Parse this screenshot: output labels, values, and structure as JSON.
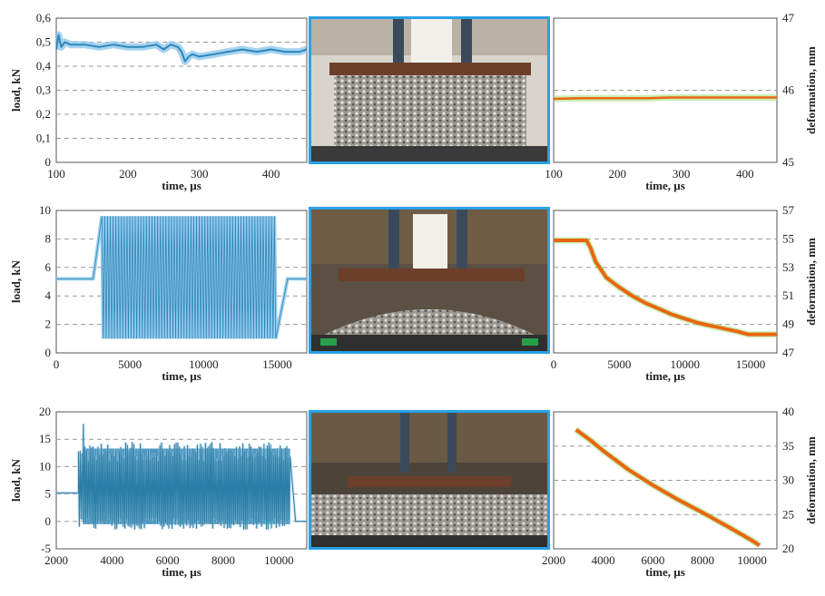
{
  "figure": {
    "photo_border_color": "#2aa0e6",
    "load_color": "#2e86b8",
    "load_band_color": "#8fc8ec",
    "deformation_color": "#e8660f",
    "deformation_glow_color": "#9fe07a",
    "grid_style": "dashed",
    "grid_color": "#999999"
  },
  "photos": [
    {
      "name": "ballast-box-photo-row1",
      "description_icon": "photo-ballast-box"
    },
    {
      "name": "ballast-box-photo-row2",
      "description_icon": "photo-ballast-box-loaded"
    },
    {
      "name": "ballast-box-photo-row3",
      "description_icon": "photo-ballast-box-settled"
    }
  ],
  "chart_data": [
    {
      "type": "line",
      "row": 1,
      "panel": "left",
      "quantity": "load",
      "xlabel": "time, µs",
      "ylabel": "load, kN",
      "xlim": [
        100,
        450
      ],
      "ylim": [
        0,
        0.6
      ],
      "xticks": [
        "100",
        "200",
        "300",
        "400"
      ],
      "xtick_values": [
        100,
        200,
        300,
        400
      ],
      "yticks": [
        "0",
        "0,1",
        "0,2",
        "0,3",
        "0,4",
        "0,5",
        "0,6"
      ],
      "ytick_values": [
        0,
        0.1,
        0.2,
        0.3,
        0.4,
        0.5,
        0.6
      ],
      "grid": true,
      "x": [
        100,
        103,
        107,
        112,
        120,
        140,
        160,
        180,
        200,
        220,
        240,
        250,
        260,
        270,
        275,
        280,
        285,
        290,
        300,
        320,
        340,
        360,
        380,
        400,
        420,
        440,
        450
      ],
      "y": [
        0.47,
        0.53,
        0.48,
        0.5,
        0.49,
        0.49,
        0.48,
        0.49,
        0.48,
        0.48,
        0.49,
        0.47,
        0.49,
        0.48,
        0.46,
        0.42,
        0.44,
        0.45,
        0.44,
        0.45,
        0.46,
        0.47,
        0.46,
        0.47,
        0.46,
        0.46,
        0.47
      ]
    },
    {
      "type": "line",
      "row": 1,
      "panel": "right",
      "quantity": "deformation",
      "xlabel": "time, µs",
      "ylabel": "deformation, mm",
      "xlim": [
        100,
        450
      ],
      "ylim": [
        45,
        47
      ],
      "xticks": [
        "100",
        "200",
        "300",
        "400"
      ],
      "xtick_values": [
        100,
        200,
        300,
        400
      ],
      "yticks": [
        "45",
        "46",
        "47"
      ],
      "ytick_values": [
        45,
        46,
        47
      ],
      "grid": true,
      "x": [
        100,
        150,
        200,
        250,
        280,
        300,
        350,
        400,
        450
      ],
      "y": [
        45.88,
        45.89,
        45.89,
        45.89,
        45.9,
        45.9,
        45.9,
        45.9,
        45.9
      ]
    },
    {
      "type": "line",
      "row": 2,
      "panel": "left",
      "quantity": "load",
      "xlabel": "time, µs",
      "ylabel": "load, kN",
      "xlim": [
        0,
        17000
      ],
      "ylim": [
        0,
        10
      ],
      "xticks": [
        "0",
        "5000",
        "10000",
        "15000"
      ],
      "xtick_values": [
        0,
        5000,
        10000,
        15000
      ],
      "yticks": [
        "0",
        "2",
        "4",
        "6",
        "8",
        "10"
      ],
      "ytick_values": [
        0,
        2,
        4,
        6,
        8,
        10
      ],
      "grid": true,
      "baseline": 5.2,
      "oscillation_start": 2500,
      "oscillation_full": 3100,
      "oscillation_end": 14800,
      "oscillation_stop": 15700,
      "max": 9.6,
      "min": 1.0,
      "cycles": 62
    },
    {
      "type": "line",
      "row": 2,
      "panel": "right",
      "quantity": "deformation",
      "xlabel": "time, µs",
      "ylabel": "deformation, mm",
      "xlim": [
        0,
        17000
      ],
      "ylim": [
        47,
        57
      ],
      "xticks": [
        "0",
        "5000",
        "10000",
        "15000"
      ],
      "xtick_values": [
        0,
        5000,
        10000,
        15000
      ],
      "yticks": [
        "47",
        "49",
        "51",
        "53",
        "55",
        "57"
      ],
      "ytick_values": [
        47,
        49,
        51,
        53,
        55,
        57
      ],
      "grid": true,
      "x": [
        0,
        2500,
        2800,
        3200,
        4000,
        5000,
        6000,
        7000,
        8000,
        9000,
        10000,
        11000,
        12000,
        13000,
        14000,
        14800,
        15000,
        17000
      ],
      "y": [
        54.9,
        54.9,
        54.4,
        53.4,
        52.3,
        51.6,
        51.0,
        50.5,
        50.1,
        49.7,
        49.4,
        49.1,
        48.9,
        48.7,
        48.5,
        48.3,
        48.3,
        48.3
      ]
    },
    {
      "type": "line",
      "row": 3,
      "panel": "left",
      "quantity": "load",
      "xlabel": "time, µs",
      "ylabel": "load, kN",
      "xlim": [
        2000,
        11000
      ],
      "ylim": [
        -5,
        20
      ],
      "xticks": [
        "2000",
        "4000",
        "6000",
        "8000",
        "10000"
      ],
      "xtick_values": [
        2000,
        4000,
        6000,
        8000,
        10000
      ],
      "yticks": [
        "-5",
        "0",
        "5",
        "10",
        "15",
        "20"
      ],
      "ytick_values": [
        -5,
        0,
        5,
        10,
        15,
        20
      ],
      "grid": true,
      "baseline": 5.2,
      "oscillation_start": 2800,
      "oscillation_end": 10400,
      "end_value": 0,
      "max": 14.5,
      "min": -1.5,
      "peak": 17.8
    },
    {
      "type": "line",
      "row": 3,
      "panel": "right",
      "quantity": "deformation",
      "xlabel": "time, µs",
      "ylabel": "deformation, mm",
      "xlim": [
        2000,
        11000
      ],
      "ylim": [
        20,
        40
      ],
      "xticks": [
        "2000",
        "4000",
        "6000",
        "8000",
        "10000"
      ],
      "xtick_values": [
        2000,
        4000,
        6000,
        8000,
        10000
      ],
      "yticks": [
        "20",
        "25",
        "30",
        "35",
        "40"
      ],
      "ytick_values": [
        20,
        25,
        30,
        35,
        40
      ],
      "grid": true,
      "x": [
        2900,
        3500,
        4000,
        5000,
        6000,
        7000,
        8000,
        9000,
        10000,
        10300
      ],
      "y": [
        37.4,
        35.8,
        34.3,
        31.6,
        29.3,
        27.2,
        25.3,
        23.3,
        21.2,
        20.5
      ]
    }
  ]
}
